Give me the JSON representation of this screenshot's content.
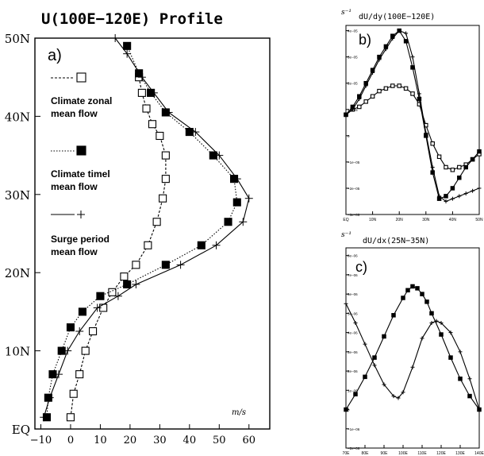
{
  "chart_data": [
    {
      "id": "a",
      "type": "line",
      "title": "U(100E−120E) Profile",
      "panel_label": "a)",
      "unit_label": "m/s",
      "x_ticks": [
        "−10",
        "0",
        "10",
        "20",
        "30",
        "40",
        "50",
        "60"
      ],
      "y_ticks": [
        "EQ",
        "10N",
        "20N",
        "30N",
        "40N",
        "50N"
      ],
      "xlim": [
        -12,
        67
      ],
      "ylim": [
        0,
        50
      ],
      "legend": [
        {
          "label_lines": [
            "Climate zonal",
            "mean flow"
          ],
          "marker": "open-square",
          "line": "dashed"
        },
        {
          "label_lines": [
            "Climate timel",
            "mean flow"
          ],
          "marker": "filled-square",
          "line": "dotted"
        },
        {
          "label_lines": [
            "Surge period",
            "mean flow"
          ],
          "marker": "plus",
          "line": "solid"
        }
      ],
      "series": [
        {
          "marker": "open-square",
          "line": "dashed",
          "points": [
            [
              0,
              1.5
            ],
            [
              1,
              4.5
            ],
            [
              3,
              7
            ],
            [
              5,
              10
            ],
            [
              7.5,
              12.5
            ],
            [
              11,
              15.5
            ],
            [
              14,
              17.5
            ],
            [
              18,
              19.5
            ],
            [
              22,
              21
            ],
            [
              26,
              23.5
            ],
            [
              29,
              26.5
            ],
            [
              31,
              29.5
            ],
            [
              32,
              32
            ],
            [
              32,
              35
            ],
            [
              30,
              37.5
            ],
            [
              27.5,
              39
            ],
            [
              25.5,
              41
            ],
            [
              24,
              43
            ],
            [
              23,
              45
            ]
          ]
        },
        {
          "marker": "filled-square",
          "line": "dotted",
          "points": [
            [
              -8,
              1.5
            ],
            [
              -7.5,
              4
            ],
            [
              -6,
              7
            ],
            [
              -3,
              10
            ],
            [
              0,
              13
            ],
            [
              4,
              15
            ],
            [
              10,
              17
            ],
            [
              19,
              18.5
            ],
            [
              32,
              21
            ],
            [
              44,
              23.5
            ],
            [
              53,
              26.5
            ],
            [
              56,
              29
            ],
            [
              55,
              32
            ],
            [
              48,
              35
            ],
            [
              40,
              38
            ],
            [
              32,
              40.5
            ],
            [
              27,
              43
            ],
            [
              23,
              45.5
            ],
            [
              19,
              49
            ]
          ]
        },
        {
          "marker": "plus",
          "line": "solid",
          "points": [
            [
              -9,
              1.5
            ],
            [
              -7,
              4
            ],
            [
              -4,
              7
            ],
            [
              -1,
              10
            ],
            [
              3,
              12.5
            ],
            [
              9,
              15.5
            ],
            [
              16,
              17
            ],
            [
              22,
              18.5
            ],
            [
              37,
              21
            ],
            [
              49,
              23.5
            ],
            [
              58,
              26.5
            ],
            [
              60,
              29.5
            ],
            [
              56,
              32
            ],
            [
              50,
              35
            ],
            [
              42,
              38
            ],
            [
              33,
              40.5
            ],
            [
              28,
              43
            ],
            [
              24,
              45
            ],
            [
              19,
              48
            ],
            [
              15,
              50
            ]
          ]
        }
      ]
    },
    {
      "id": "b",
      "type": "line",
      "title": "dU/dy(100E−120E)",
      "panel_label": "b)",
      "unit_label": "s⁻¹",
      "x_ticks": [
        "EQ",
        "10N",
        "20N",
        "30N",
        "40N",
        "50N"
      ],
      "y_ticks": [
        "−3e−05",
        "−2e−05",
        "−1e−05",
        "0",
        "1e−05",
        "2e−05",
        "3e−05",
        "4e−05"
      ],
      "xlim": [
        0,
        50
      ],
      "ylim": [
        -3,
        4.2
      ],
      "series": [
        {
          "marker": "open-square",
          "line": "solid",
          "x": [
            0,
            2.5,
            5,
            7.5,
            10,
            12.5,
            15,
            17.5,
            20,
            22.5,
            25,
            27.5,
            30,
            32.5,
            35,
            37.5,
            40,
            42.5,
            45,
            47.5,
            50
          ],
          "values": [
            0.8,
            1.0,
            1.1,
            1.3,
            1.5,
            1.7,
            1.8,
            1.9,
            1.9,
            1.8,
            1.6,
            1.2,
            0.4,
            -0.3,
            -0.8,
            -1.2,
            -1.3,
            -1.2,
            -1.1,
            -0.9,
            -0.7
          ]
        },
        {
          "marker": "filled-square",
          "line": "solid",
          "x": [
            0,
            2.5,
            5,
            7.5,
            10,
            12.5,
            15,
            17.5,
            20,
            22.5,
            25,
            27.5,
            30,
            32.5,
            35,
            37.5,
            40,
            42.5,
            45,
            47.5,
            50
          ],
          "values": [
            0.8,
            1.1,
            1.5,
            2.0,
            2.5,
            3.0,
            3.4,
            3.8,
            4.0,
            3.6,
            2.6,
            1.4,
            0.0,
            -1.4,
            -2.4,
            -2.3,
            -2.0,
            -1.6,
            -1.2,
            -0.9,
            -0.6
          ]
        },
        {
          "marker": "plus",
          "line": "solid",
          "x": [
            0,
            2.5,
            5,
            7.5,
            10,
            12.5,
            15,
            17.5,
            20,
            22.5,
            25,
            27.5,
            30,
            32.5,
            35,
            37.5,
            40,
            42.5,
            45,
            47.5,
            50
          ],
          "values": [
            0.8,
            1.0,
            1.4,
            1.9,
            2.4,
            2.9,
            3.3,
            3.7,
            4.0,
            3.9,
            3.0,
            1.6,
            0.1,
            -1.2,
            -2.3,
            -2.5,
            -2.4,
            -2.3,
            -2.2,
            -2.1,
            -2.0
          ]
        }
      ]
    },
    {
      "id": "c",
      "type": "line",
      "title": "dU/dx(25N−35N)",
      "panel_label": "c)",
      "unit_label": "s⁻¹",
      "x_ticks": [
        "70E",
        "80E",
        "90E",
        "100E",
        "110E",
        "120E",
        "130E",
        "140E"
      ],
      "y_ticks": [
        "−2e−06",
        "−1e−06",
        "0",
        "1e−06",
        "2e−06",
        "3e−06",
        "4e−06",
        "5e−06",
        "6e−06",
        "7e−06",
        "8e−06"
      ],
      "xlim": [
        70,
        140
      ],
      "ylim": [
        -2,
        8.4
      ],
      "series": [
        {
          "marker": "filled-square",
          "line": "solid",
          "x": [
            70,
            75,
            80,
            85,
            90,
            95,
            100,
            102.5,
            105,
            107.5,
            110,
            112.5,
            115,
            120,
            125,
            130,
            135,
            140
          ],
          "values": [
            0.0,
            0.8,
            1.7,
            2.7,
            3.8,
            4.9,
            5.8,
            6.2,
            6.4,
            6.3,
            6.0,
            5.6,
            5.0,
            3.9,
            2.7,
            1.6,
            0.7,
            0.0
          ]
        },
        {
          "marker": "plus",
          "line": "solid",
          "x": [
            70,
            75,
            80,
            85,
            90,
            95,
            97.5,
            100,
            105,
            110,
            115,
            117.5,
            120,
            125,
            130,
            135,
            140
          ],
          "values": [
            5.5,
            4.5,
            3.4,
            2.3,
            1.3,
            0.7,
            0.6,
            0.9,
            2.2,
            3.7,
            4.5,
            4.6,
            4.5,
            4.0,
            3.0,
            1.6,
            0.0
          ]
        }
      ]
    }
  ]
}
